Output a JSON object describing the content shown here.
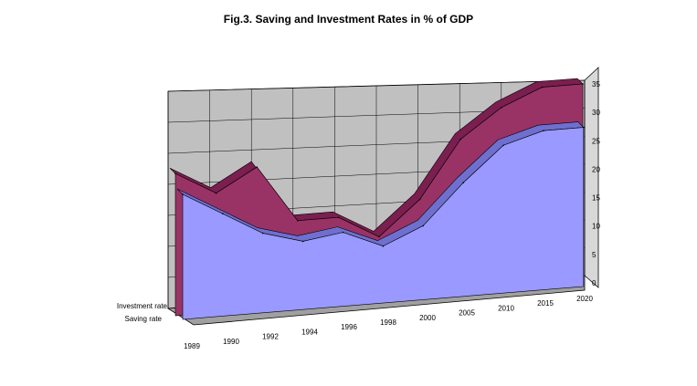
{
  "chart_data": {
    "type": "area",
    "title": "Fig.3. Saving and Investment Rates in % of GDP",
    "categories": [
      "1989",
      "1990",
      "1992",
      "1994",
      "1996",
      "1998",
      "2000",
      "2005",
      "2010",
      "2015",
      "2020"
    ],
    "series": [
      {
        "name": "Investment rate",
        "values": [
          25,
          21,
          25,
          15,
          15,
          11,
          17,
          27,
          32,
          35,
          35
        ]
      },
      {
        "name": "Saving rate",
        "values": [
          22,
          18,
          14,
          12,
          13,
          10,
          13,
          20,
          26,
          28,
          28
        ]
      }
    ],
    "ylim": [
      0,
      35
    ],
    "yticks": [
      "0",
      "5",
      "10",
      "15",
      "20",
      "25",
      "30",
      "35"
    ],
    "grid": true,
    "colors": {
      "investment": "#993366",
      "saving": "#9999ff",
      "wall": "#c0c0c0"
    }
  }
}
